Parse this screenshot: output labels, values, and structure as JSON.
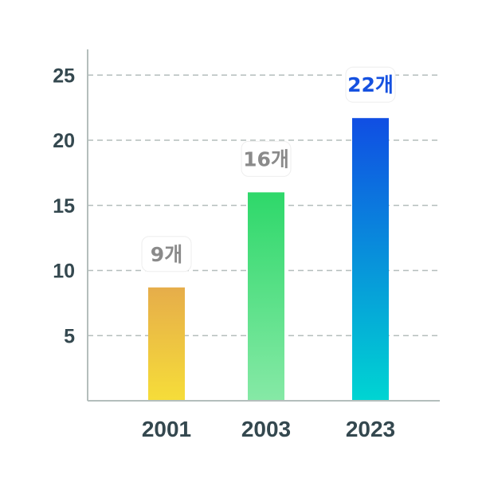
{
  "chart_data": {
    "type": "bar",
    "title": "",
    "xlabel": "",
    "ylabel": "",
    "categories": [
      "2001",
      "2003",
      "2023"
    ],
    "values": [
      8.7,
      16,
      21.7
    ],
    "data_labels": [
      "9개",
      "16개",
      "22개"
    ],
    "yticks": [
      5,
      10,
      15,
      20,
      25
    ],
    "ylim": [
      0,
      27
    ],
    "grid": "horizontal dashed",
    "legend": "none",
    "highlight_index": 2,
    "colors": {
      "bar_gradients": [
        [
          "#e6ad4a",
          "#f6dd39"
        ],
        [
          "#2ed86a",
          "#86e9a6"
        ],
        [
          "#104ee3",
          "#00d5d2"
        ]
      ],
      "label_default": "#8a8a8a",
      "label_highlight": "#1551e0",
      "category_default": "#34484f",
      "category_highlight": "#1551e0",
      "tick": "#34484f",
      "axis": "#b4bebc",
      "grid": "#b4bebc"
    }
  }
}
